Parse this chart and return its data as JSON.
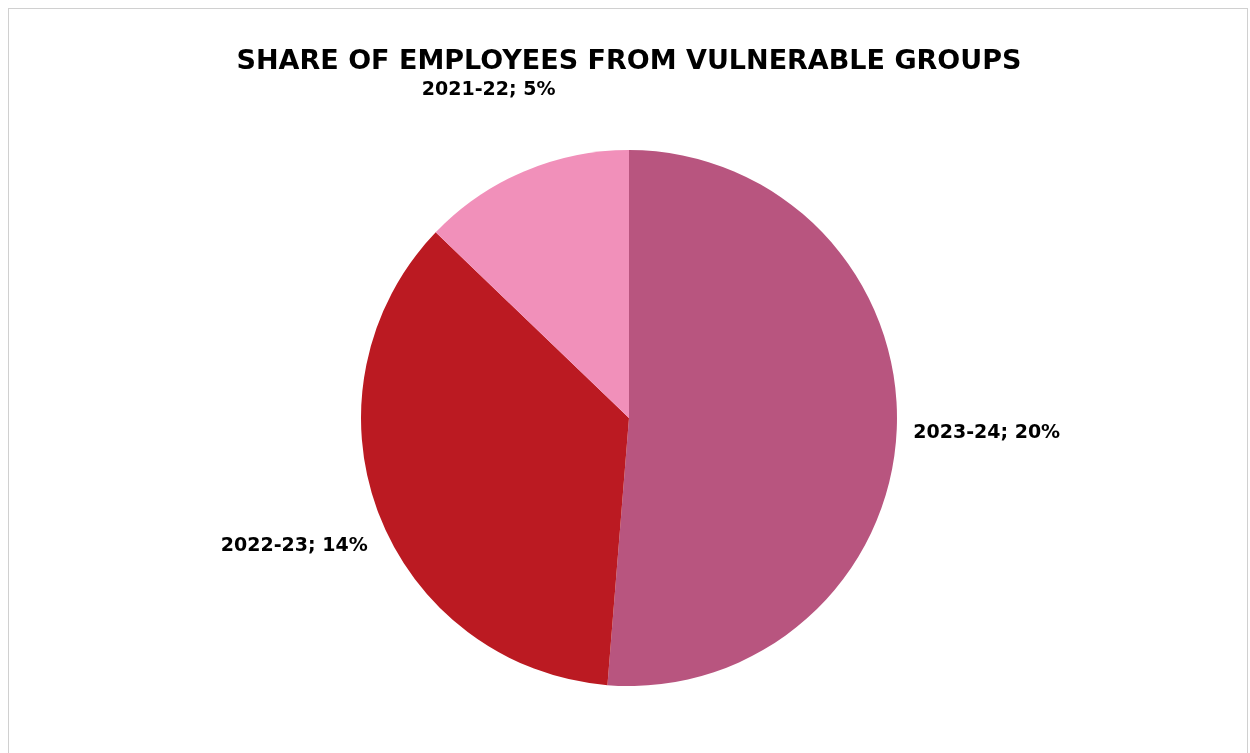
{
  "chart_data": {
    "type": "pie",
    "title": "SHARE OF EMPLOYEES FROM VULNERABLE GROUPS",
    "categories": [
      "2023-24",
      "2022-23",
      "2021-22"
    ],
    "values": [
      20,
      14,
      5
    ],
    "colors": [
      "#b8557f",
      "#bb1a22",
      "#f190ba"
    ],
    "value_labels": [
      "20%",
      "14%",
      "5%"
    ],
    "legend": false
  }
}
